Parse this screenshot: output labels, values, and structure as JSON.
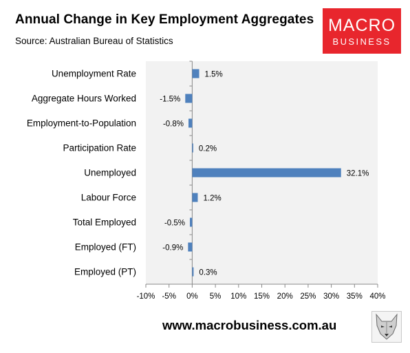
{
  "header": {
    "title": "Annual Change in Key Employment Aggregates",
    "source": "Source: Australian Bureau of Statistics"
  },
  "logo": {
    "line1": "MACRO",
    "line2": "BUSINESS"
  },
  "footer": {
    "url": "www.macrobusiness.com.au"
  },
  "colors": {
    "bar": "#4f81bd",
    "plot_bg": "#f2f2f2",
    "logo_bg": "#e8262d"
  },
  "chart_data": {
    "type": "bar",
    "orientation": "horizontal",
    "categories": [
      "Unemployment Rate",
      "Aggregate Hours Worked",
      "Employment-to-Population",
      "Participation Rate",
      "Unemployed",
      "Labour Force",
      "Total Employed",
      "Employed (FT)",
      "Employed (PT)"
    ],
    "values": [
      1.5,
      -1.5,
      -0.8,
      0.2,
      32.1,
      1.2,
      -0.5,
      -0.9,
      0.3
    ],
    "value_labels": [
      "1.5%",
      "-1.5%",
      "-0.8%",
      "0.2%",
      "32.1%",
      "1.2%",
      "-0.5%",
      "-0.9%",
      "0.3%"
    ],
    "xlim": [
      -10,
      40
    ],
    "xticks": [
      -10,
      -5,
      0,
      5,
      10,
      15,
      20,
      25,
      30,
      35,
      40
    ],
    "xtick_labels": [
      "-10%",
      "-5%",
      "0%",
      "5%",
      "10%",
      "15%",
      "20%",
      "25%",
      "30%",
      "35%",
      "40%"
    ],
    "grid": false,
    "legend": "none"
  }
}
